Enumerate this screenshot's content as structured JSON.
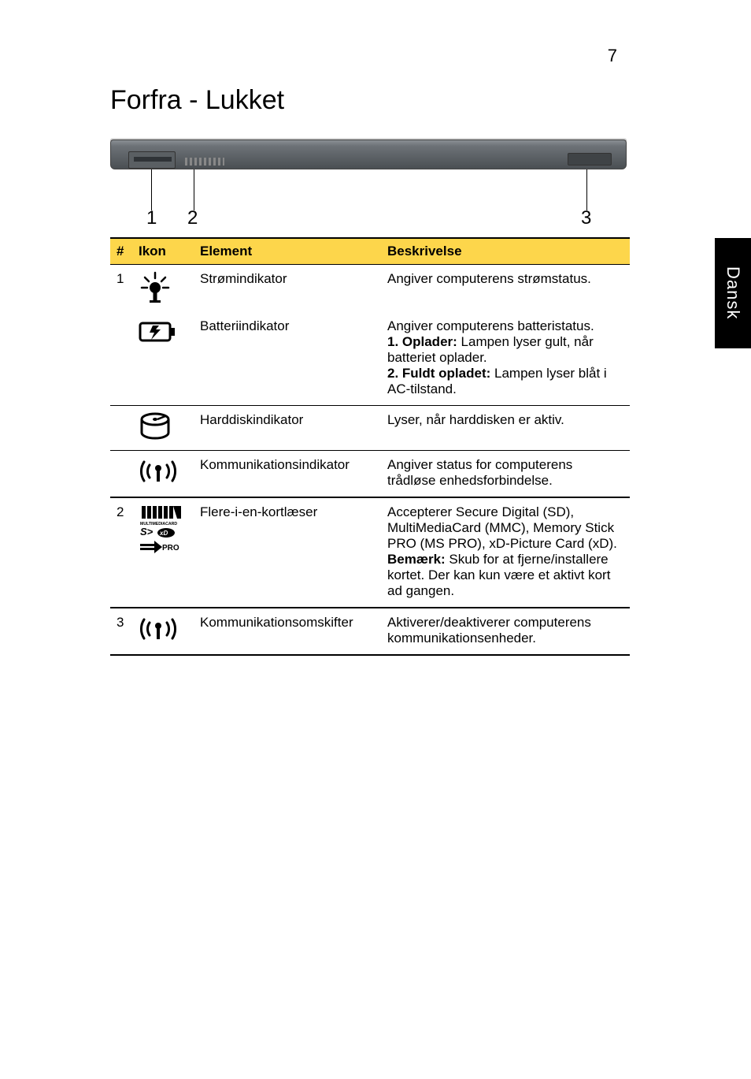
{
  "page_number": "7",
  "side_tab": "Dansk",
  "heading": "Forfra - Lukket",
  "diagram": {
    "callouts": [
      "1",
      "2",
      "3"
    ]
  },
  "table": {
    "headers": {
      "hash": "#",
      "ikon": "Ikon",
      "element": "Element",
      "beskrivelse": "Beskrivelse"
    },
    "rows": [
      {
        "num": "1",
        "icon": "power-led-icon",
        "element": "Strømindikator",
        "desc_html": "Angiver computerens strømstatus."
      },
      {
        "num": "",
        "icon": "battery-icon",
        "element": "Batteriindikator",
        "desc_html": "Angiver computerens batteristatus.<br><b>1. Oplader:</b> Lampen lyser gult, når batteriet oplader.<br><b>2. Fuldt opladet:</b> Lampen lyser blåt i AC-tilstand."
      },
      {
        "num": "",
        "icon": "hdd-icon",
        "element": "Harddiskindikator",
        "desc_html": "Lyser, når harddisken er aktiv."
      },
      {
        "num": "",
        "icon": "wireless-icon",
        "element": "Kommunikationsindikator",
        "desc_html": "Angiver status for computerens trådløse enhedsforbindelse."
      },
      {
        "num": "2",
        "icon": "card-reader-icon",
        "element": "Flere-i-en-kortlæser",
        "desc_html": "Accepterer Secure Digital (SD), MultiMediaCard (MMC), Memory Stick PRO (MS PRO), xD-Picture Card (xD).<br><b>Bemærk:</b> Skub for at fjerne/installere kortet. Der kan kun være et aktivt kort ad gangen."
      },
      {
        "num": "3",
        "icon": "wireless-icon",
        "element": "Kommunikationsomskifter",
        "desc_html": "Aktiverer/deaktiverer computerens kommunikationsenheder."
      }
    ]
  },
  "colors": {
    "header_bg": "#fdd64b",
    "border": "#000000",
    "sidetab_bg": "#000000",
    "sidetab_fg": "#ffffff"
  }
}
